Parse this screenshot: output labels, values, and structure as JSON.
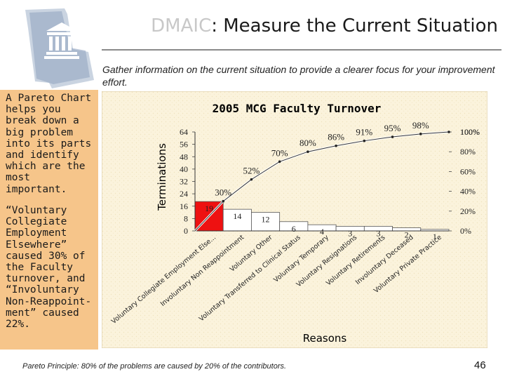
{
  "slide": {
    "title_prefix": "DMAIC",
    "title_rest": ": Measure the Current Situation",
    "subtitle": "Gather information on the current situation to provide a clearer focus for your improvement effort.",
    "sidebar_text_1": "A Pareto Chart helps you break down a big problem into its parts and identify which are the most important.",
    "sidebar_text_2": "“Voluntary Collegiate Employment Elsewhere” caused 30% of the Faculty turnover, and “Involuntary Non-Reappoint-ment” caused 22%.",
    "footnote": "Pareto Principle: 80% of the problems are caused by 20% of the contributors.",
    "page_number": "46",
    "colors": {
      "sidebar": "#f6c58a",
      "chart_bg": "#fbf3dc",
      "highlight_bar": "#ee1111",
      "bar": "#ffffff"
    }
  },
  "chart_data": {
    "type": "bar",
    "title": "2005 MCG Faculty Turnover",
    "xlabel": "Reasons",
    "ylabel": "Terminations",
    "categories": [
      "Voluntary Collegiate Employment Else...",
      "Involuntary Non Reappointment",
      "Voluntary Other",
      "Voluntary Transferred to Clinical Status",
      "Voluntary Temporary",
      "Voluntary Resignations",
      "Voluntary Retirements",
      "Involuntary Deceased",
      "Voluntary Private Practice"
    ],
    "values": [
      19,
      14,
      12,
      6,
      4,
      3,
      3,
      2,
      1
    ],
    "bar_labels": [
      "19",
      "14",
      "12",
      "6",
      "4",
      "3",
      "3",
      "2",
      "1"
    ],
    "highlighted_index": 0,
    "cumulative_percent": [
      30,
      52,
      70,
      80,
      86,
      91,
      95,
      98,
      100
    ],
    "cumulative_labels": [
      "30%",
      "52%",
      "70%",
      "80%",
      "86%",
      "91%",
      "95%",
      "98%",
      "100%"
    ],
    "ylim": [
      0,
      64
    ],
    "y_ticks": [
      "0",
      "8",
      "16",
      "24",
      "32",
      "40",
      "48",
      "56",
      "64"
    ],
    "y2_ticks": [
      "0%",
      "20%",
      "40%",
      "60%",
      "80%",
      "100%"
    ],
    "grid": false,
    "legend": "none"
  }
}
